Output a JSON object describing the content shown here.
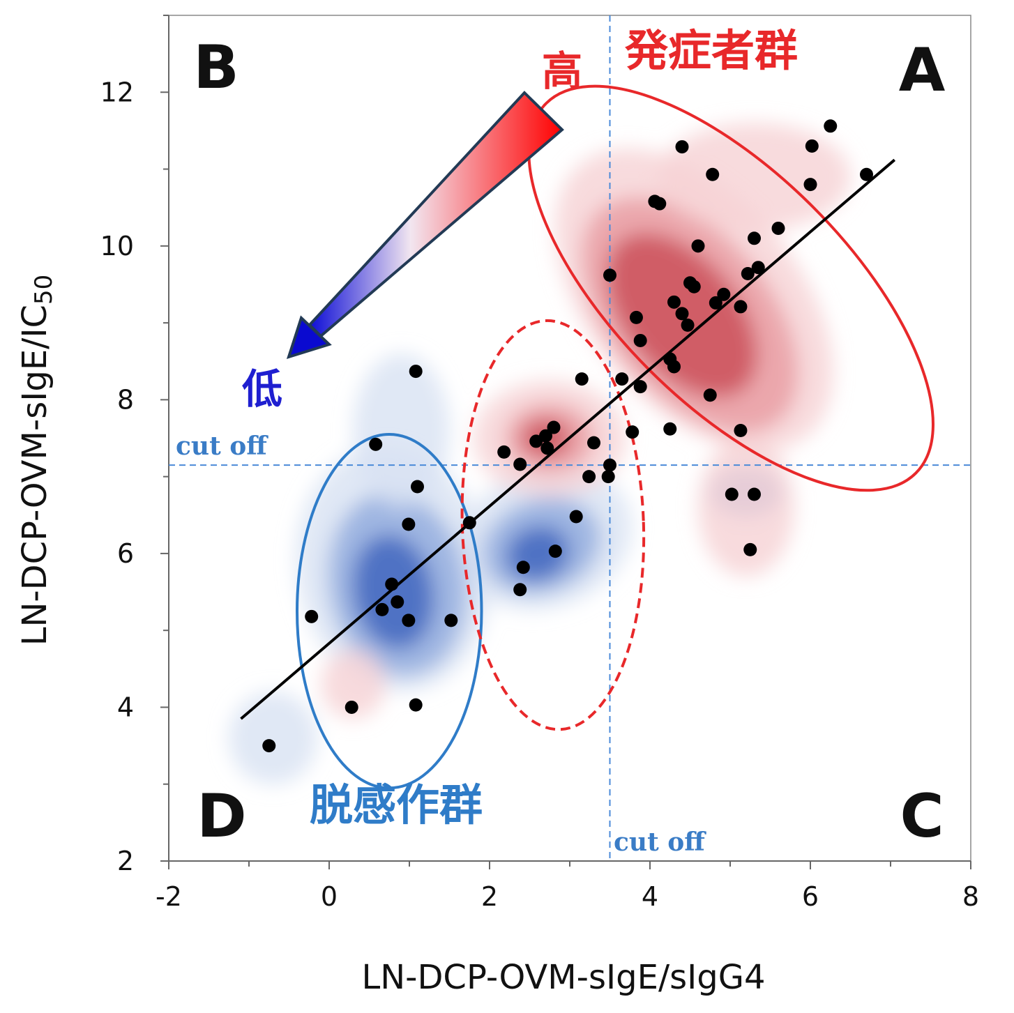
{
  "chart_data": {
    "type": "scatter",
    "title": "",
    "xlabel": "LN-DCP-OVM-sIgE/sIgG4",
    "ylabel_main": "LN-DCP-OVM-sIgE/IC",
    "ylabel_sub": "50",
    "xlim": [
      -2,
      8
    ],
    "ylim": [
      2,
      13
    ],
    "x_ticks": [
      -2,
      0,
      2,
      4,
      6,
      8
    ],
    "x_tick_labels": [
      "-2",
      "0",
      "2",
      "4",
      "6",
      "8"
    ],
    "y_ticks": [
      2,
      4,
      6,
      8,
      10,
      12
    ],
    "y_tick_labels": [
      "2",
      "4",
      "6",
      "8",
      "10",
      "12"
    ],
    "cutoff_x": 3.5,
    "cutoff_y": 7.15,
    "cutoff_label": "cut off",
    "quadrant_labels": {
      "A": "A",
      "B": "B",
      "C": "C",
      "D": "D"
    },
    "groups": {
      "onset": "発症者群",
      "desensitization": "脱感作群"
    },
    "gradient_labels": {
      "high": "高",
      "low": "低"
    },
    "regression_line": {
      "x": [
        -1.1,
        7.05
      ],
      "y": [
        3.85,
        11.12
      ]
    },
    "colors": {
      "onset": "#e8282a",
      "desensitization": "#2f7cc8",
      "point": "#000000",
      "high": "#e8282a",
      "low": "#1f1fd0"
    },
    "points": [
      {
        "x": -0.75,
        "y": 3.5
      },
      {
        "x": 0.28,
        "y": 4.0
      },
      {
        "x": 1.08,
        "y": 4.03
      },
      {
        "x": -0.22,
        "y": 5.18
      },
      {
        "x": 0.66,
        "y": 5.27
      },
      {
        "x": 0.85,
        "y": 5.37
      },
      {
        "x": 0.99,
        "y": 5.13
      },
      {
        "x": 1.52,
        "y": 5.13
      },
      {
        "x": 0.78,
        "y": 5.6
      },
      {
        "x": 0.99,
        "y": 6.38
      },
      {
        "x": 1.1,
        "y": 6.87
      },
      {
        "x": 0.58,
        "y": 7.42
      },
      {
        "x": 1.08,
        "y": 8.37
      },
      {
        "x": 1.75,
        "y": 6.4
      },
      {
        "x": 2.38,
        "y": 5.53
      },
      {
        "x": 2.42,
        "y": 5.82
      },
      {
        "x": 2.82,
        "y": 6.03
      },
      {
        "x": 3.08,
        "y": 6.48
      },
      {
        "x": 3.24,
        "y": 7.0
      },
      {
        "x": 3.48,
        "y": 7.0
      },
      {
        "x": 3.5,
        "y": 7.15
      },
      {
        "x": 3.3,
        "y": 7.44
      },
      {
        "x": 2.18,
        "y": 7.32
      },
      {
        "x": 2.38,
        "y": 7.16
      },
      {
        "x": 2.58,
        "y": 7.46
      },
      {
        "x": 2.7,
        "y": 7.53
      },
      {
        "x": 2.8,
        "y": 7.64
      },
      {
        "x": 2.72,
        "y": 7.37
      },
      {
        "x": 3.15,
        "y": 8.27
      },
      {
        "x": 3.65,
        "y": 8.27
      },
      {
        "x": 3.78,
        "y": 7.58
      },
      {
        "x": 3.88,
        "y": 8.17
      },
      {
        "x": 3.88,
        "y": 8.77
      },
      {
        "x": 3.83,
        "y": 9.07
      },
      {
        "x": 3.5,
        "y": 9.62
      },
      {
        "x": 4.25,
        "y": 8.53
      },
      {
        "x": 4.3,
        "y": 8.43
      },
      {
        "x": 4.25,
        "y": 7.62
      },
      {
        "x": 4.75,
        "y": 8.06
      },
      {
        "x": 4.3,
        "y": 9.27
      },
      {
        "x": 4.4,
        "y": 9.12
      },
      {
        "x": 4.47,
        "y": 8.97
      },
      {
        "x": 4.55,
        "y": 9.47
      },
      {
        "x": 4.5,
        "y": 9.52
      },
      {
        "x": 4.6,
        "y": 10.0
      },
      {
        "x": 4.82,
        "y": 9.26
      },
      {
        "x": 4.92,
        "y": 9.37
      },
      {
        "x": 5.13,
        "y": 9.21
      },
      {
        "x": 5.22,
        "y": 9.64
      },
      {
        "x": 5.3,
        "y": 10.1
      },
      {
        "x": 5.35,
        "y": 9.72
      },
      {
        "x": 5.6,
        "y": 10.23
      },
      {
        "x": 4.06,
        "y": 10.58
      },
      {
        "x": 4.12,
        "y": 10.55
      },
      {
        "x": 4.78,
        "y": 10.93
      },
      {
        "x": 4.4,
        "y": 11.29
      },
      {
        "x": 6.0,
        "y": 10.8
      },
      {
        "x": 6.02,
        "y": 11.3
      },
      {
        "x": 6.25,
        "y": 11.56
      },
      {
        "x": 6.7,
        "y": 10.93
      },
      {
        "x": 5.13,
        "y": 7.6
      },
      {
        "x": 5.02,
        "y": 6.77
      },
      {
        "x": 5.3,
        "y": 6.77
      },
      {
        "x": 5.25,
        "y": 6.05
      }
    ],
    "ellipses": [
      {
        "name": "desensitization",
        "cx": 0.75,
        "cy": 5.25,
        "rx": 1.15,
        "ry": 2.3,
        "angle": 0,
        "style": "solid",
        "color": "#2f7cc8"
      },
      {
        "name": "middle",
        "cx": 2.79,
        "cy": 6.37,
        "rx": 1.13,
        "ry": 2.66,
        "angle": 2,
        "style": "dashed",
        "color": "#e8282a"
      },
      {
        "name": "onset",
        "cx": 5.01,
        "cy": 9.45,
        "rx": 1.44,
        "ry": 3.4,
        "angle": 45,
        "style": "solid",
        "color": "#e8282a"
      }
    ],
    "density_red": [
      {
        "cx": 4.55,
        "cy": 9.3,
        "rx": 1.3,
        "ry": 2.3,
        "angle": 40,
        "level": 1
      },
      {
        "cx": 4.5,
        "cy": 9.1,
        "rx": 1.0,
        "ry": 1.8,
        "angle": 40,
        "level": 2
      },
      {
        "cx": 4.4,
        "cy": 9.1,
        "rx": 0.7,
        "ry": 1.25,
        "angle": 40,
        "level": 3
      },
      {
        "cx": 5.3,
        "cy": 10.9,
        "rx": 1.2,
        "ry": 0.7,
        "angle": 0,
        "level": 1
      },
      {
        "cx": 2.75,
        "cy": 7.5,
        "rx": 0.95,
        "ry": 0.75,
        "angle": 0,
        "level": 1
      },
      {
        "cx": 2.75,
        "cy": 7.5,
        "rx": 0.55,
        "ry": 0.45,
        "angle": 0,
        "level": 2
      },
      {
        "cx": 2.7,
        "cy": 7.5,
        "rx": 0.3,
        "ry": 0.25,
        "angle": 0,
        "level": 3
      },
      {
        "cx": 5.2,
        "cy": 6.6,
        "rx": 0.6,
        "ry": 0.9,
        "angle": 0,
        "level": 1
      },
      {
        "cx": 0.3,
        "cy": 4.3,
        "rx": 0.4,
        "ry": 0.45,
        "angle": 0,
        "level": 1
      }
    ],
    "density_blue": [
      {
        "cx": 0.8,
        "cy": 5.8,
        "rx": 1.2,
        "ry": 1.6,
        "angle": 10,
        "level": 1
      },
      {
        "cx": 0.85,
        "cy": 5.6,
        "rx": 0.85,
        "ry": 1.2,
        "angle": 10,
        "level": 2
      },
      {
        "cx": 0.8,
        "cy": 5.5,
        "rx": 0.5,
        "ry": 0.75,
        "angle": 10,
        "level": 3
      },
      {
        "cx": 2.7,
        "cy": 6.2,
        "rx": 1.1,
        "ry": 0.9,
        "angle": 20,
        "level": 1
      },
      {
        "cx": 2.65,
        "cy": 6.1,
        "rx": 0.75,
        "ry": 0.6,
        "angle": 20,
        "level": 2
      },
      {
        "cx": 2.6,
        "cy": 6.0,
        "rx": 0.4,
        "ry": 0.35,
        "angle": 20,
        "level": 3
      },
      {
        "cx": 5.2,
        "cy": 6.8,
        "rx": 0.45,
        "ry": 0.32,
        "angle": 0,
        "level": 2
      },
      {
        "cx": -0.7,
        "cy": 3.6,
        "rx": 0.55,
        "ry": 0.6,
        "angle": 0,
        "level": 1
      },
      {
        "cx": 0.9,
        "cy": 7.6,
        "rx": 0.6,
        "ry": 1.0,
        "angle": 0,
        "level": 1
      }
    ]
  }
}
